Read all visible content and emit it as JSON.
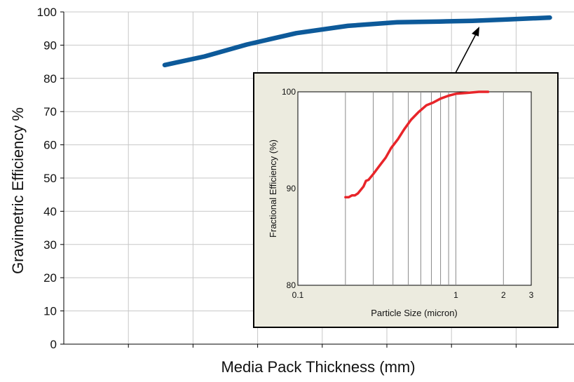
{
  "chart_data": [
    {
      "type": "line",
      "xlabel": "Media Pack Thickness (mm)",
      "ylabel": "Gravimetric Efficiency %",
      "ylim": [
        0,
        100
      ],
      "yticks": [
        0,
        10,
        20,
        30,
        40,
        50,
        60,
        70,
        80,
        90,
        100
      ],
      "x_tick_labels_shown": false,
      "grid": true,
      "series": [
        {
          "color": "#0d5a9a",
          "x": [
            2.15,
            3.0,
            3.9,
            4.95,
            6.05,
            7.1,
            8.0,
            8.7,
            9.4,
            10.35
          ],
          "y": [
            84.0,
            86.6,
            90.2,
            93.6,
            95.8,
            96.9,
            97.1,
            97.3,
            97.7,
            98.3
          ]
        }
      ]
    },
    {
      "type": "line",
      "inset": true,
      "xlabel": "Particle Size (micron)",
      "ylabel": "Fractional Efficiency (%)",
      "xscale": "log",
      "xlim": [
        0.1,
        3
      ],
      "ylim": [
        80,
        100
      ],
      "xtick_labels": [
        "0.1",
        "1",
        "2",
        "3"
      ],
      "xtick_values": [
        0.1,
        1,
        2,
        3
      ],
      "ytick_labels": [
        "80",
        "90",
        "100"
      ],
      "ytick_values": [
        80,
        90,
        100
      ],
      "grid": "vertical",
      "series": [
        {
          "color": "#e8252a",
          "x": [
            0.2,
            0.21,
            0.22,
            0.23,
            0.24,
            0.26,
            0.27,
            0.28,
            0.3,
            0.33,
            0.36,
            0.39,
            0.43,
            0.47,
            0.52,
            0.58,
            0.65,
            0.72,
            0.8,
            0.9,
            1.0,
            1.2,
            1.4,
            1.6
          ],
          "y": [
            89.1,
            89.1,
            89.3,
            89.3,
            89.5,
            90.2,
            90.8,
            90.9,
            91.5,
            92.4,
            93.2,
            94.2,
            95.1,
            96.1,
            97.1,
            97.9,
            98.6,
            98.9,
            99.3,
            99.6,
            99.8,
            99.9,
            100.0,
            100.0
          ]
        }
      ]
    }
  ]
}
